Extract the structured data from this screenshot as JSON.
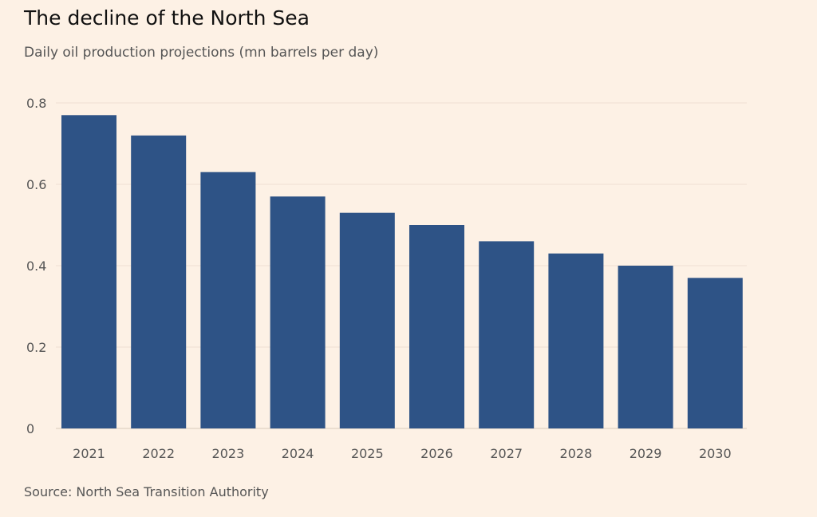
{
  "chart_data": {
    "type": "bar",
    "title": "The decline of the North Sea",
    "subtitle": "Daily oil production projections (mn barrels per day)",
    "source": "Source: North Sea Transition Authority",
    "categories": [
      "2021",
      "2022",
      "2023",
      "2024",
      "2025",
      "2026",
      "2027",
      "2028",
      "2029",
      "2030"
    ],
    "values": [
      0.77,
      0.72,
      0.63,
      0.57,
      0.53,
      0.5,
      0.46,
      0.43,
      0.4,
      0.37
    ],
    "xlabel": "",
    "ylabel": "",
    "ylim": [
      0,
      0.8
    ],
    "yticks": [
      0,
      0.2,
      0.4,
      0.6,
      0.8
    ],
    "ytick_labels": [
      "0",
      "0.2",
      "0.4",
      "0.6",
      "0.8"
    ],
    "grid": true,
    "bar_color": "#2e5386",
    "grid_color": "#eee0d3"
  }
}
